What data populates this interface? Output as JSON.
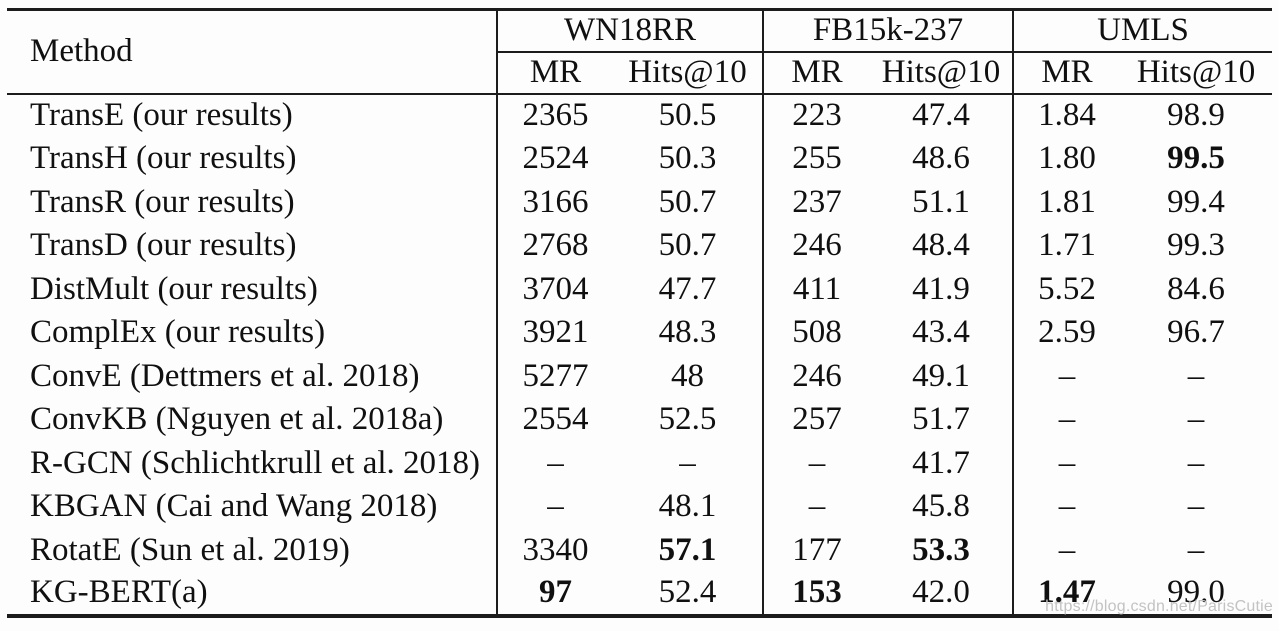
{
  "table": {
    "method_header": "Method",
    "groups": [
      {
        "label": "WN18RR",
        "cols": [
          "MR",
          "Hits@10"
        ]
      },
      {
        "label": "FB15k-237",
        "cols": [
          "MR",
          "Hits@10"
        ]
      },
      {
        "label": "UMLS",
        "cols": [
          "MR",
          "Hits@10"
        ]
      }
    ],
    "rows": [
      {
        "method": "TransE (our results)",
        "values": [
          "2365",
          "50.5",
          "223",
          "47.4",
          "1.84",
          "98.9"
        ],
        "bold": [
          false,
          false,
          false,
          false,
          false,
          false
        ]
      },
      {
        "method": "TransH (our results)",
        "values": [
          "2524",
          "50.3",
          "255",
          "48.6",
          "1.80",
          "99.5"
        ],
        "bold": [
          false,
          false,
          false,
          false,
          false,
          true
        ]
      },
      {
        "method": "TransR (our results)",
        "values": [
          "3166",
          "50.7",
          "237",
          "51.1",
          "1.81",
          "99.4"
        ],
        "bold": [
          false,
          false,
          false,
          false,
          false,
          false
        ]
      },
      {
        "method": "TransD (our results)",
        "values": [
          "2768",
          "50.7",
          "246",
          "48.4",
          "1.71",
          "99.3"
        ],
        "bold": [
          false,
          false,
          false,
          false,
          false,
          false
        ]
      },
      {
        "method": "DistMult (our results)",
        "values": [
          "3704",
          "47.7",
          "411",
          "41.9",
          "5.52",
          "84.6"
        ],
        "bold": [
          false,
          false,
          false,
          false,
          false,
          false
        ]
      },
      {
        "method": "ComplEx (our results)",
        "values": [
          "3921",
          "48.3",
          "508",
          "43.4",
          "2.59",
          "96.7"
        ],
        "bold": [
          false,
          false,
          false,
          false,
          false,
          false
        ]
      },
      {
        "method": "ConvE (Dettmers et al. 2018)",
        "values": [
          "5277",
          "48",
          "246",
          "49.1",
          "–",
          "–"
        ],
        "bold": [
          false,
          false,
          false,
          false,
          false,
          false
        ]
      },
      {
        "method": "ConvKB (Nguyen et al. 2018a)",
        "values": [
          "2554",
          "52.5",
          "257",
          "51.7",
          "–",
          "–"
        ],
        "bold": [
          false,
          false,
          false,
          false,
          false,
          false
        ]
      },
      {
        "method": "R-GCN (Schlichtkrull et al. 2018)",
        "values": [
          "–",
          "–",
          "–",
          "41.7",
          "–",
          "–"
        ],
        "bold": [
          false,
          false,
          false,
          false,
          false,
          false
        ]
      },
      {
        "method": "KBGAN (Cai and Wang 2018)",
        "values": [
          "–",
          "48.1",
          "–",
          "45.8",
          "–",
          "–"
        ],
        "bold": [
          false,
          false,
          false,
          false,
          false,
          false
        ]
      },
      {
        "method": "RotatE (Sun et al. 2019)",
        "values": [
          "3340",
          "57.1",
          "177",
          "53.3",
          "–",
          "–"
        ],
        "bold": [
          false,
          true,
          false,
          true,
          false,
          false
        ]
      },
      {
        "method": "KG-BERT(a)",
        "values": [
          "97",
          "52.4",
          "153",
          "42.0",
          "1.47",
          "99.0"
        ],
        "bold": [
          true,
          false,
          true,
          false,
          true,
          false
        ]
      }
    ]
  },
  "watermark": {
    "text": "https://blog.csdn.net/ParisCutie",
    "color": "#c3c3c3"
  },
  "colors": {
    "rule": "#1c1c1c",
    "text": "#101010",
    "background": "#fdfdfd"
  }
}
